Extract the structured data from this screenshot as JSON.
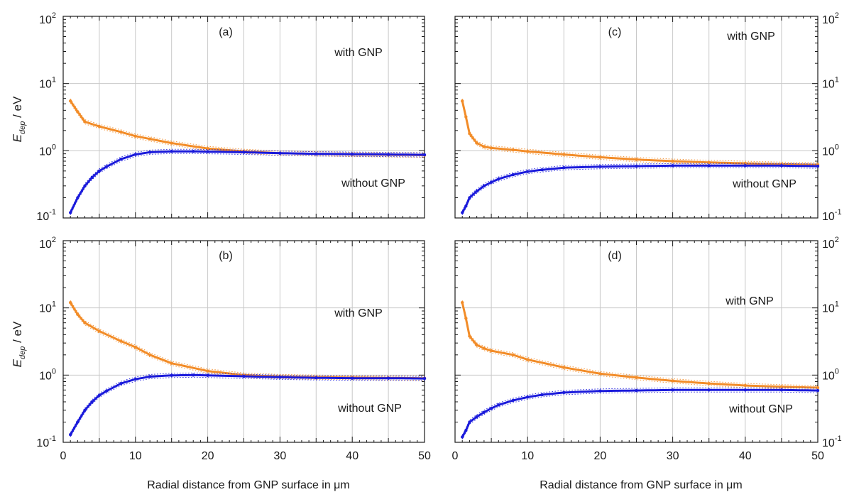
{
  "figure": {
    "xlabel": "Radial distance from GNP surface in μm",
    "ylabel_main": "E",
    "ylabel_sub": "dep",
    "ylabel_unit": " / eV",
    "colors": {
      "with_gnp": "#f28c28",
      "without_gnp": "#1a1adb",
      "grid": "#c8c8c8",
      "axis": "#1a1a1a"
    }
  },
  "chart_data": [
    {
      "type": "scatter",
      "panel": "a",
      "panel_label": "(a)",
      "annotation_top": "with GNP",
      "annotation_bottom": "without GNP",
      "yscale": "log",
      "xlim": [
        0,
        50
      ],
      "ylim": [
        0.1,
        100
      ],
      "xticks": [
        "0",
        "10",
        "20",
        "30",
        "40",
        "50"
      ],
      "yticks": [
        {
          "base": "10",
          "exp": "-1"
        },
        {
          "base": "10",
          "exp": "0"
        },
        {
          "base": "10",
          "exp": "1"
        },
        {
          "base": "10",
          "exp": "2"
        }
      ],
      "grid": true,
      "series": [
        {
          "key": "with",
          "x": [
            1,
            2,
            3,
            5,
            8,
            10,
            12,
            15,
            20,
            25,
            30,
            35,
            40,
            45,
            50
          ],
          "y": [
            5.5,
            3.8,
            2.7,
            2.3,
            1.9,
            1.65,
            1.5,
            1.3,
            1.08,
            0.98,
            0.92,
            0.9,
            0.88,
            0.87,
            0.86
          ]
        },
        {
          "key": "without",
          "x": [
            1,
            2,
            3,
            4,
            5,
            6,
            8,
            10,
            12,
            15,
            18,
            20,
            25,
            30,
            35,
            40,
            45,
            50
          ],
          "y": [
            0.12,
            0.2,
            0.3,
            0.4,
            0.5,
            0.58,
            0.75,
            0.88,
            0.95,
            0.98,
            0.98,
            0.97,
            0.95,
            0.92,
            0.9,
            0.89,
            0.88,
            0.87
          ]
        }
      ]
    },
    {
      "type": "scatter",
      "panel": "b",
      "panel_label": "(b)",
      "annotation_top": "with GNP",
      "annotation_bottom": "without GNP",
      "yscale": "log",
      "xlim": [
        0,
        50
      ],
      "ylim": [
        0.1,
        100
      ],
      "xticks": [
        "0",
        "10",
        "20",
        "30",
        "40",
        "50"
      ],
      "yticks": [
        {
          "base": "10",
          "exp": "-1"
        },
        {
          "base": "10",
          "exp": "0"
        },
        {
          "base": "10",
          "exp": "1"
        },
        {
          "base": "10",
          "exp": "2"
        }
      ],
      "grid": true,
      "series": [
        {
          "key": "with",
          "x": [
            1,
            2,
            3,
            5,
            8,
            10,
            12,
            15,
            20,
            25,
            30,
            35,
            40,
            45,
            50
          ],
          "y": [
            12,
            8,
            6,
            4.5,
            3.2,
            2.6,
            2.0,
            1.5,
            1.15,
            1.0,
            0.95,
            0.93,
            0.92,
            0.91,
            0.9
          ]
        },
        {
          "key": "without",
          "x": [
            1,
            2,
            3,
            4,
            5,
            6,
            8,
            10,
            12,
            15,
            18,
            20,
            25,
            30,
            35,
            40,
            45,
            50
          ],
          "y": [
            0.13,
            0.2,
            0.3,
            0.4,
            0.5,
            0.58,
            0.75,
            0.87,
            0.95,
            0.99,
            1.0,
            0.99,
            0.96,
            0.93,
            0.91,
            0.9,
            0.9,
            0.89
          ]
        }
      ]
    },
    {
      "type": "scatter",
      "panel": "c",
      "panel_label": "(c)",
      "annotation_top": "with GNP",
      "annotation_bottom": "without GNP",
      "yscale": "log",
      "xlim": [
        0,
        50
      ],
      "ylim": [
        0.1,
        100
      ],
      "xticks": [
        "0",
        "10",
        "20",
        "30",
        "40",
        "50"
      ],
      "yticks": [
        {
          "base": "10",
          "exp": "-1"
        },
        {
          "base": "10",
          "exp": "0"
        },
        {
          "base": "10",
          "exp": "1"
        },
        {
          "base": "10",
          "exp": "2"
        }
      ],
      "grid": true,
      "series": [
        {
          "key": "with",
          "x": [
            1,
            1.5,
            2,
            3,
            4,
            5,
            8,
            10,
            15,
            20,
            25,
            30,
            35,
            40,
            45,
            50
          ],
          "y": [
            5.5,
            3.2,
            1.8,
            1.3,
            1.15,
            1.1,
            1.03,
            0.98,
            0.88,
            0.8,
            0.74,
            0.7,
            0.67,
            0.65,
            0.63,
            0.62
          ]
        },
        {
          "key": "without",
          "x": [
            1,
            1.5,
            2,
            3,
            4,
            5,
            6,
            8,
            10,
            12,
            15,
            20,
            25,
            30,
            35,
            40,
            45,
            50
          ],
          "y": [
            0.12,
            0.15,
            0.2,
            0.25,
            0.3,
            0.34,
            0.38,
            0.44,
            0.49,
            0.52,
            0.56,
            0.58,
            0.59,
            0.6,
            0.6,
            0.6,
            0.6,
            0.59
          ]
        }
      ]
    },
    {
      "type": "scatter",
      "panel": "d",
      "panel_label": "(d)",
      "annotation_top": "with GNP",
      "annotation_bottom": "without GNP",
      "yscale": "log",
      "xlim": [
        0,
        50
      ],
      "ylim": [
        0.1,
        100
      ],
      "xticks": [
        "0",
        "10",
        "20",
        "30",
        "40",
        "50"
      ],
      "yticks": [
        {
          "base": "10",
          "exp": "-1"
        },
        {
          "base": "10",
          "exp": "0"
        },
        {
          "base": "10",
          "exp": "1"
        },
        {
          "base": "10",
          "exp": "2"
        }
      ],
      "grid": true,
      "series": [
        {
          "key": "with",
          "x": [
            1,
            1.5,
            2,
            3,
            4,
            5,
            8,
            10,
            15,
            20,
            25,
            30,
            35,
            40,
            45,
            50
          ],
          "y": [
            12,
            7,
            3.8,
            2.8,
            2.5,
            2.3,
            2.0,
            1.7,
            1.3,
            1.05,
            0.92,
            0.82,
            0.75,
            0.7,
            0.67,
            0.65
          ]
        },
        {
          "key": "without",
          "x": [
            1,
            1.5,
            2,
            3,
            4,
            5,
            6,
            8,
            10,
            12,
            15,
            20,
            25,
            30,
            35,
            40,
            45,
            50
          ],
          "y": [
            0.12,
            0.15,
            0.2,
            0.24,
            0.28,
            0.32,
            0.36,
            0.42,
            0.47,
            0.51,
            0.55,
            0.58,
            0.59,
            0.6,
            0.6,
            0.6,
            0.6,
            0.59
          ]
        }
      ]
    }
  ]
}
